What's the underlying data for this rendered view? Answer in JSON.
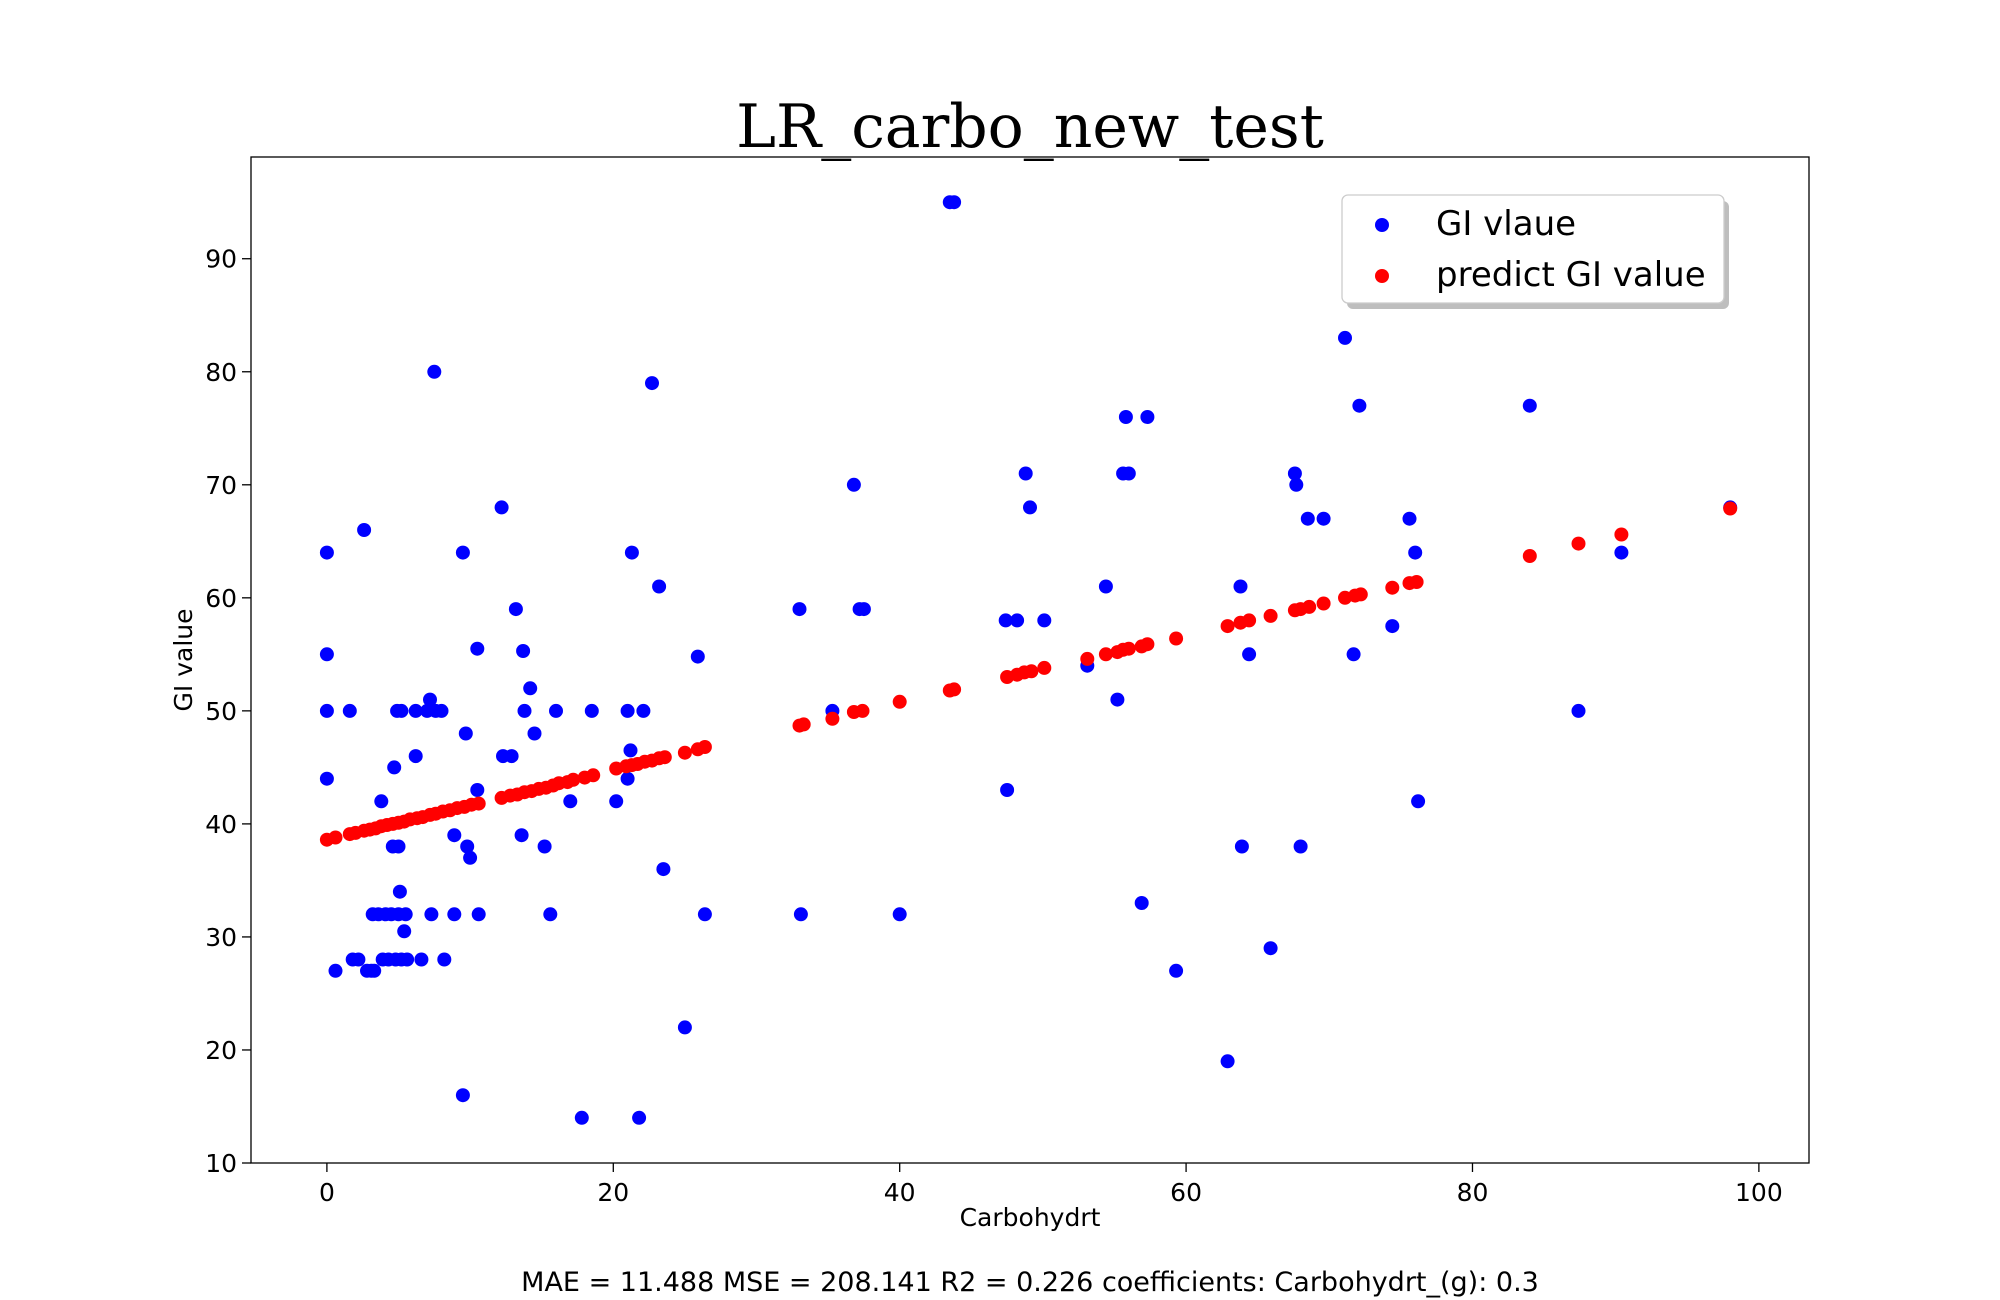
{
  "chart_data": {
    "type": "scatter",
    "title": "LR_carbo_new_test",
    "xlabel": "Carbohydrt",
    "ylabel": "GI value",
    "xlim": [
      -5.3,
      103.5
    ],
    "ylim": [
      10,
      99
    ],
    "xticks": [
      0,
      20,
      40,
      60,
      80,
      100
    ],
    "yticks": [
      10,
      20,
      30,
      40,
      50,
      60,
      70,
      80,
      90
    ],
    "grid": false,
    "legend_position": "top-right",
    "footnote": "MAE = 11.488 MSE = 208.141 R2 = 0.226 coefficients: Carbohydrt_(g): 0.3",
    "series": [
      {
        "name": "GI vlaue",
        "color": "#0000ff",
        "points": [
          [
            0,
            64
          ],
          [
            0,
            55
          ],
          [
            0,
            50
          ],
          [
            0,
            44
          ],
          [
            0.6,
            27
          ],
          [
            1.6,
            50
          ],
          [
            1.8,
            28
          ],
          [
            2.2,
            28
          ],
          [
            2.6,
            66
          ],
          [
            2.8,
            27
          ],
          [
            3.1,
            27
          ],
          [
            3.2,
            32
          ],
          [
            3.3,
            27
          ],
          [
            3.6,
            32
          ],
          [
            3.8,
            42
          ],
          [
            3.9,
            28
          ],
          [
            4.1,
            32
          ],
          [
            4.3,
            28
          ],
          [
            4.5,
            32
          ],
          [
            4.6,
            38
          ],
          [
            4.7,
            45
          ],
          [
            4.8,
            28
          ],
          [
            4.9,
            50
          ],
          [
            5,
            32
          ],
          [
            5,
            38
          ],
          [
            5.1,
            34
          ],
          [
            5.2,
            50
          ],
          [
            5.2,
            28
          ],
          [
            5.4,
            30.5
          ],
          [
            5.5,
            32
          ],
          [
            5.6,
            28
          ],
          [
            6.2,
            46
          ],
          [
            6.2,
            50
          ],
          [
            6.6,
            28
          ],
          [
            7,
            50
          ],
          [
            7.2,
            51
          ],
          [
            7.3,
            32
          ],
          [
            7.5,
            80
          ],
          [
            7.6,
            50
          ],
          [
            8,
            50
          ],
          [
            8.2,
            28
          ],
          [
            8.9,
            39
          ],
          [
            8.9,
            32
          ],
          [
            9.5,
            16
          ],
          [
            9.5,
            64
          ],
          [
            9.7,
            48
          ],
          [
            9.8,
            38
          ],
          [
            10,
            37
          ],
          [
            10.5,
            43
          ],
          [
            10.5,
            55.5
          ],
          [
            10.6,
            32
          ],
          [
            12.2,
            68
          ],
          [
            12.3,
            46
          ],
          [
            12.9,
            46
          ],
          [
            13.2,
            59
          ],
          [
            13.6,
            39
          ],
          [
            13.7,
            55.3
          ],
          [
            13.8,
            50
          ],
          [
            14.2,
            52
          ],
          [
            14.5,
            48
          ],
          [
            15.2,
            38
          ],
          [
            15.6,
            32
          ],
          [
            16,
            50
          ],
          [
            17,
            42
          ],
          [
            17.8,
            14
          ],
          [
            18.5,
            50
          ],
          [
            20.2,
            42
          ],
          [
            21,
            50
          ],
          [
            21,
            44
          ],
          [
            21.2,
            46.5
          ],
          [
            21.3,
            64
          ],
          [
            21.8,
            14
          ],
          [
            22.1,
            50
          ],
          [
            22.7,
            79
          ],
          [
            23.2,
            61
          ],
          [
            23.5,
            36
          ],
          [
            25,
            22
          ],
          [
            25.9,
            54.8
          ],
          [
            26.4,
            32
          ],
          [
            33,
            59
          ],
          [
            33.1,
            32
          ],
          [
            35.3,
            50
          ],
          [
            36.8,
            70
          ],
          [
            37.2,
            59
          ],
          [
            37.5,
            59
          ],
          [
            40,
            32
          ],
          [
            43.5,
            95
          ],
          [
            43.8,
            95
          ],
          [
            47.4,
            58
          ],
          [
            47.5,
            43
          ],
          [
            48.2,
            58
          ],
          [
            48.8,
            71
          ],
          [
            49.1,
            68
          ],
          [
            50.1,
            58
          ],
          [
            53.1,
            54
          ],
          [
            54.4,
            61
          ],
          [
            55.2,
            51
          ],
          [
            55.6,
            71
          ],
          [
            55.8,
            76
          ],
          [
            56,
            71
          ],
          [
            56.9,
            33
          ],
          [
            57.3,
            76
          ],
          [
            59.3,
            27
          ],
          [
            62.9,
            19
          ],
          [
            63.8,
            61
          ],
          [
            63.9,
            38
          ],
          [
            64.4,
            55
          ],
          [
            65.9,
            29
          ],
          [
            67.6,
            71
          ],
          [
            67.7,
            70
          ],
          [
            68,
            38
          ],
          [
            68.5,
            67
          ],
          [
            69.6,
            67
          ],
          [
            71.1,
            83
          ],
          [
            71.7,
            55
          ],
          [
            72.1,
            77
          ],
          [
            74.4,
            57.5
          ],
          [
            75.6,
            67
          ],
          [
            76,
            64
          ],
          [
            76.2,
            42
          ],
          [
            84,
            77
          ],
          [
            87.4,
            50
          ],
          [
            90.4,
            64
          ],
          [
            98,
            68
          ]
        ]
      },
      {
        "name": "predict GI value",
        "color": "#ff0000",
        "points": [
          [
            0,
            38.6
          ],
          [
            0.6,
            38.8
          ],
          [
            1.6,
            39.1
          ],
          [
            2,
            39.2
          ],
          [
            2.6,
            39.4
          ],
          [
            3,
            39.5
          ],
          [
            3.4,
            39.6
          ],
          [
            3.8,
            39.8
          ],
          [
            4.2,
            39.9
          ],
          [
            4.6,
            40
          ],
          [
            5,
            40.1
          ],
          [
            5.4,
            40.2
          ],
          [
            5.8,
            40.4
          ],
          [
            6.3,
            40.5
          ],
          [
            6.7,
            40.6
          ],
          [
            7.2,
            40.8
          ],
          [
            7.6,
            40.9
          ],
          [
            8.1,
            41.1
          ],
          [
            8.6,
            41.2
          ],
          [
            9.1,
            41.4
          ],
          [
            9.6,
            41.5
          ],
          [
            10.1,
            41.7
          ],
          [
            10.6,
            41.8
          ],
          [
            12.2,
            42.3
          ],
          [
            12.8,
            42.5
          ],
          [
            13.3,
            42.6
          ],
          [
            13.8,
            42.8
          ],
          [
            14.3,
            42.9
          ],
          [
            14.8,
            43.1
          ],
          [
            15.3,
            43.2
          ],
          [
            15.8,
            43.4
          ],
          [
            16.2,
            43.6
          ],
          [
            16.8,
            43.7
          ],
          [
            17.2,
            43.9
          ],
          [
            18,
            44.1
          ],
          [
            18.6,
            44.3
          ],
          [
            20.2,
            44.9
          ],
          [
            20.9,
            45.1
          ],
          [
            21.3,
            45.2
          ],
          [
            21.7,
            45.3
          ],
          [
            22.2,
            45.5
          ],
          [
            22.7,
            45.6
          ],
          [
            23.2,
            45.8
          ],
          [
            23.6,
            45.9
          ],
          [
            25,
            46.3
          ],
          [
            25.9,
            46.6
          ],
          [
            26.4,
            46.8
          ],
          [
            33,
            48.7
          ],
          [
            33.3,
            48.8
          ],
          [
            35.3,
            49.3
          ],
          [
            36.8,
            49.9
          ],
          [
            37.4,
            50
          ],
          [
            40,
            50.8
          ],
          [
            43.5,
            51.8
          ],
          [
            43.8,
            51.9
          ],
          [
            47.5,
            53
          ],
          [
            48.2,
            53.2
          ],
          [
            48.7,
            53.4
          ],
          [
            49.2,
            53.5
          ],
          [
            50.1,
            53.8
          ],
          [
            53.1,
            54.6
          ],
          [
            54.4,
            55
          ],
          [
            55.2,
            55.2
          ],
          [
            55.6,
            55.4
          ],
          [
            56,
            55.5
          ],
          [
            56.9,
            55.7
          ],
          [
            57.3,
            55.9
          ],
          [
            59.3,
            56.4
          ],
          [
            62.9,
            57.5
          ],
          [
            63.8,
            57.8
          ],
          [
            64.4,
            58
          ],
          [
            65.9,
            58.4
          ],
          [
            67.6,
            58.9
          ],
          [
            68,
            59
          ],
          [
            68.6,
            59.2
          ],
          [
            69.6,
            59.5
          ],
          [
            71.1,
            60
          ],
          [
            71.8,
            60.2
          ],
          [
            72.2,
            60.3
          ],
          [
            74.4,
            60.9
          ],
          [
            75.6,
            61.3
          ],
          [
            76.1,
            61.4
          ],
          [
            84,
            63.7
          ],
          [
            87.4,
            64.8
          ],
          [
            90.4,
            65.6
          ],
          [
            98,
            67.9
          ]
        ]
      }
    ]
  }
}
